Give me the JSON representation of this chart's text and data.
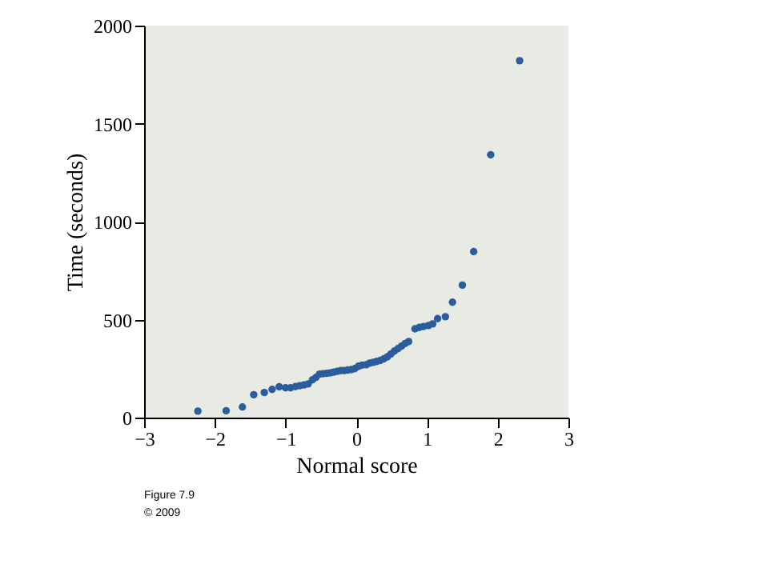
{
  "chart_data": {
    "type": "scatter",
    "xlabel": "Normal score",
    "ylabel": "Time (seconds)",
    "x": [
      -2.24,
      -1.84,
      -1.61,
      -1.45,
      -1.3,
      -1.19,
      -1.09,
      -1.0,
      -0.93,
      -0.86,
      -0.8,
      -0.74,
      -0.68,
      -0.62,
      -0.57,
      -0.52,
      -0.47,
      -0.42,
      -0.37,
      -0.32,
      -0.27,
      -0.22,
      -0.17,
      -0.12,
      -0.07,
      -0.02,
      0.03,
      0.08,
      0.14,
      0.19,
      0.24,
      0.29,
      0.34,
      0.39,
      0.44,
      0.49,
      0.54,
      0.59,
      0.64,
      0.69,
      0.74,
      0.83,
      0.89,
      0.95,
      1.02,
      1.08,
      1.15,
      1.26,
      1.36,
      1.5,
      1.66,
      1.9,
      2.31
    ],
    "series": [
      {
        "color": "#2b5c9c",
        "values": [
          33,
          35,
          54,
          117,
          128,
          144,
          157,
          152,
          152,
          158,
          163,
          167,
          172,
          193,
          205,
          222,
          224,
          226,
          228,
          232,
          236,
          240,
          240,
          243,
          245,
          250,
          262,
          268,
          270,
          278,
          282,
          287,
          292,
          300,
          310,
          325,
          340,
          352,
          365,
          378,
          388,
          453,
          460,
          465,
          470,
          478,
          505,
          515,
          589,
          676,
          847,
          1341,
          1821
        ]
      }
    ],
    "marker": "circle",
    "xlim": [
      -3,
      3
    ],
    "xticks": [
      -3,
      -2,
      -1,
      0,
      1,
      2,
      3
    ],
    "ylim": [
      0,
      2000
    ],
    "yticks": [
      0,
      500,
      1000,
      1500,
      2000
    ],
    "grid": false,
    "annotations": [
      "Figure 7.9",
      "© 2009"
    ]
  }
}
